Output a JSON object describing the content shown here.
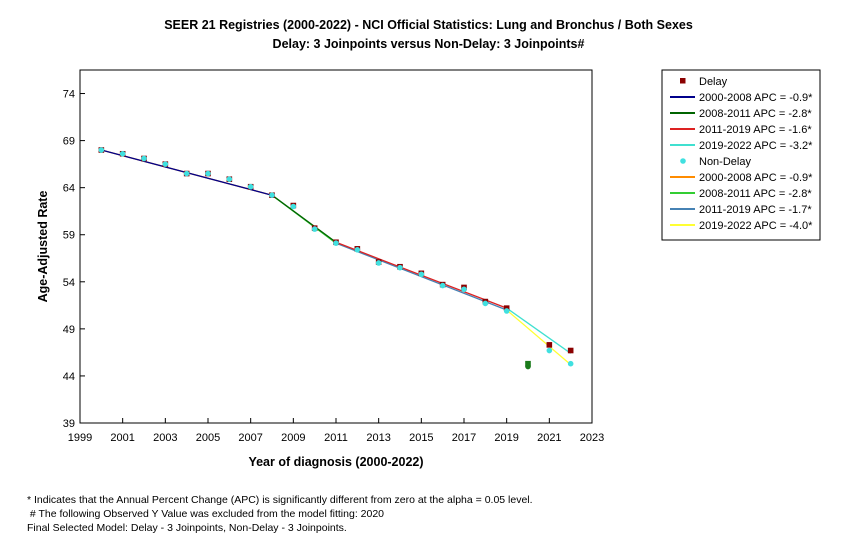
{
  "title_line1": "SEER 21 Registries (2000-2022) - NCI Official Statistics: Lung and Bronchus / Both Sexes",
  "title_line2": "Delay: 3 Joinpoints  versus  Non-Delay: 3 Joinpoints#",
  "footnotes": {
    "line1": "* Indicates that the Annual Percent Change (APC) is significantly different from zero at the alpha = 0.05 level.",
    "line2": " # The following Observed Y Value was excluded from the model fitting: 2020",
    "line3": "Final Selected Model: Delay - 3 Joinpoints, Non-Delay - 3 Joinpoints."
  },
  "colors": {
    "delay_points": "#8b0000",
    "nondelay_points": "#40e0e0",
    "excluded_point": "#1a7a1a",
    "delay_seg1": "#00008b",
    "delay_seg2": "#006400",
    "delay_seg3": "#dd2222",
    "delay_seg4": "#40e0d0",
    "nondelay_seg1": "#ff8c00",
    "nondelay_seg2": "#32cd32",
    "nondelay_seg3": "#4682b4",
    "nondelay_seg4": "#ffff33"
  },
  "chart_data": {
    "type": "scatter",
    "xlabel": "Year of diagnosis (2000-2022)",
    "ylabel": "Age-Adjusted Rate",
    "xlim": [
      1999,
      2023
    ],
    "ylim": [
      39,
      76.5
    ],
    "xticks": [
      "1999",
      "2001",
      "2003",
      "2005",
      "2007",
      "2009",
      "2011",
      "2013",
      "2015",
      "2017",
      "2019",
      "2021",
      "2023"
    ],
    "yticks": [
      "39",
      "44",
      "49",
      "54",
      "59",
      "64",
      "69",
      "74"
    ],
    "grid": false,
    "legend_position": "outside top-right",
    "observed": {
      "delay": {
        "name": "Delay",
        "x": [
          2000,
          2001,
          2002,
          2003,
          2004,
          2005,
          2006,
          2007,
          2008,
          2009,
          2010,
          2011,
          2012,
          2013,
          2014,
          2015,
          2016,
          2017,
          2018,
          2019,
          2020,
          2021,
          2022
        ],
        "y": [
          68.0,
          67.6,
          67.1,
          66.5,
          65.5,
          65.5,
          64.9,
          64.1,
          63.2,
          62.1,
          59.7,
          58.2,
          57.5,
          56.1,
          55.6,
          54.9,
          53.7,
          53.4,
          51.9,
          51.2,
          45.3,
          47.3,
          46.7
        ]
      },
      "nondelay": {
        "name": "Non-Delay",
        "x": [
          2000,
          2001,
          2002,
          2003,
          2004,
          2005,
          2006,
          2007,
          2008,
          2009,
          2010,
          2011,
          2012,
          2013,
          2014,
          2015,
          2016,
          2017,
          2018,
          2019,
          2020,
          2021,
          2022
        ],
        "y": [
          68.0,
          67.6,
          67.1,
          66.5,
          65.5,
          65.5,
          64.9,
          64.1,
          63.2,
          62.0,
          59.6,
          58.1,
          57.4,
          56.0,
          55.5,
          54.8,
          53.6,
          53.2,
          51.7,
          50.9,
          45.0,
          46.7,
          45.3
        ]
      },
      "excluded_year": 2020
    },
    "series": [
      {
        "name": "2000-2008 APC  = -0.9*",
        "group": "delay",
        "color_key": "delay_seg1",
        "x": [
          2000,
          2008
        ],
        "y": [
          68.0,
          63.2
        ]
      },
      {
        "name": "2008-2011 APC  = -2.8*",
        "group": "delay",
        "color_key": "delay_seg2",
        "x": [
          2008,
          2011
        ],
        "y": [
          63.2,
          58.2
        ]
      },
      {
        "name": "2011-2019 APC  = -1.6*",
        "group": "delay",
        "color_key": "delay_seg3",
        "x": [
          2011,
          2019
        ],
        "y": [
          58.2,
          51.2
        ]
      },
      {
        "name": "2019-2022 APC  = -3.2*",
        "group": "delay",
        "color_key": "delay_seg4",
        "x": [
          2019,
          2022
        ],
        "y": [
          51.2,
          46.4
        ]
      },
      {
        "name": "2000-2008 APC  = -0.9*",
        "group": "nondelay",
        "color_key": "nondelay_seg1",
        "x": [
          2000,
          2008
        ],
        "y": [
          68.0,
          63.2
        ]
      },
      {
        "name": "2008-2011 APC  = -2.8*",
        "group": "nondelay",
        "color_key": "nondelay_seg2",
        "x": [
          2008,
          2011
        ],
        "y": [
          63.2,
          58.1
        ]
      },
      {
        "name": "2011-2019 APC  = -1.7*",
        "group": "nondelay",
        "color_key": "nondelay_seg3",
        "x": [
          2011,
          2019
        ],
        "y": [
          58.1,
          51.0
        ]
      },
      {
        "name": "2019-2022 APC  = -4.0*",
        "group": "nondelay",
        "color_key": "nondelay_seg4",
        "x": [
          2019,
          2022
        ],
        "y": [
          51.0,
          45.2
        ]
      }
    ]
  }
}
